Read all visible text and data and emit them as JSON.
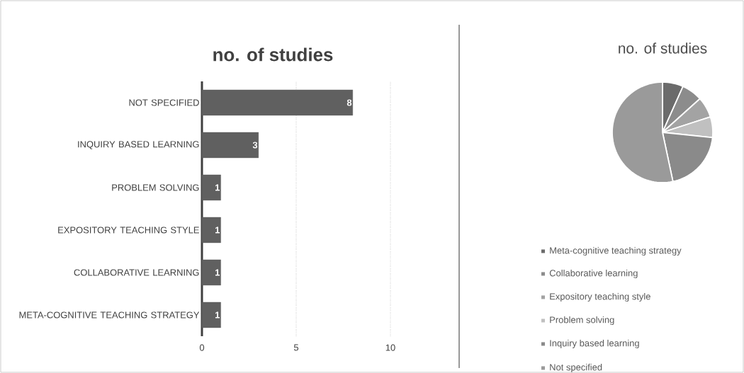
{
  "chart_data": [
    {
      "type": "bar",
      "orientation": "horizontal",
      "title": "no. of studies",
      "categories": [
        "NOT SPECIFIED",
        "INQUIRY BASED LEARNING",
        "PROBLEM SOLVING",
        "EXPOSITORY TEACHING STYLE",
        "COLLABORATIVE LEARNING",
        "META-COGNITIVE TEACHING STRATEGY"
      ],
      "values": [
        8,
        3,
        1,
        1,
        1,
        1
      ],
      "color": "#606060",
      "xlim": [
        0,
        10
      ],
      "xticks": [
        0,
        5,
        10
      ],
      "grid": "x",
      "data_labels": true
    },
    {
      "type": "pie",
      "title": "no. of studies",
      "categories": [
        "Meta-cognitive teaching strategy",
        "Collaborative learning",
        "Expository teaching style",
        "Problem solving",
        "Inquiry based learning",
        "Not specified"
      ],
      "values": [
        6.67,
        6.67,
        6.67,
        6.67,
        20,
        53.32
      ],
      "colors": [
        "#6b6b6b",
        "#8c8c8c",
        "#a3a3a3",
        "#c0c0c0",
        "#8a8a8a",
        "#9a9a9a"
      ],
      "legend": "bottom"
    }
  ]
}
